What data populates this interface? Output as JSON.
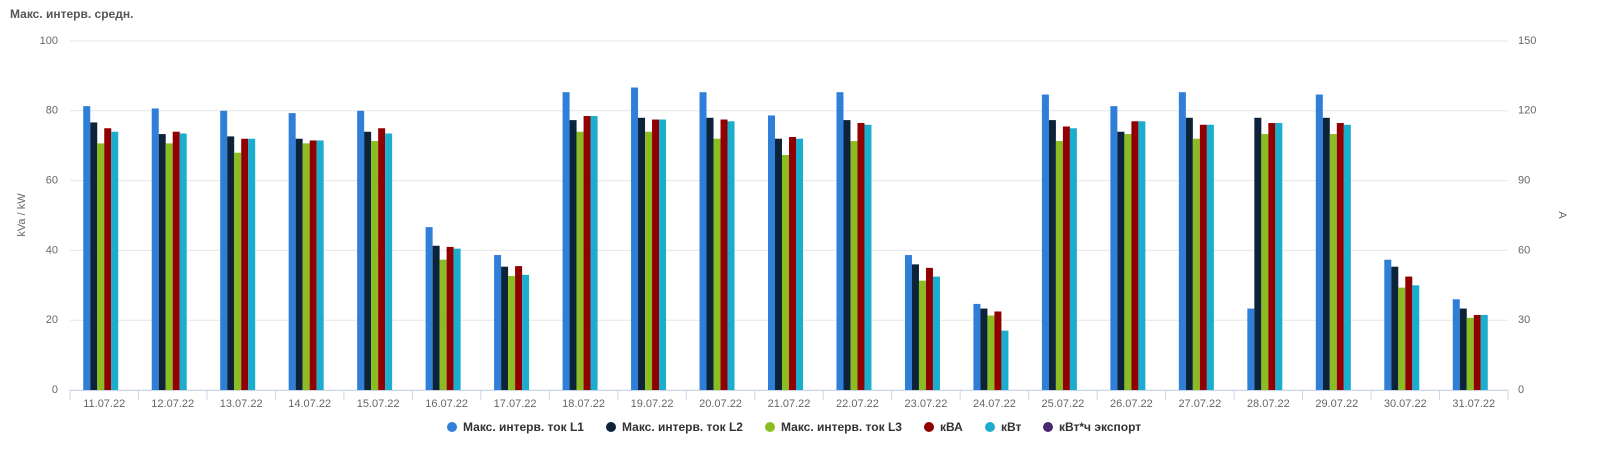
{
  "chart_data": {
    "type": "bar",
    "title": "Макс. интерв. средн.",
    "ylabel": "kVa / kW",
    "y2label": "A",
    "categories": [
      "11.07.22",
      "12.07.22",
      "13.07.22",
      "14.07.22",
      "15.07.22",
      "16.07.22",
      "17.07.22",
      "18.07.22",
      "19.07.22",
      "20.07.22",
      "21.07.22",
      "22.07.22",
      "23.07.22",
      "24.07.22",
      "25.07.22",
      "26.07.22",
      "27.07.22",
      "28.07.22",
      "29.07.22",
      "30.07.22",
      "31.07.22"
    ],
    "series": [
      {
        "name": "Макс. интерв. ток L1",
        "color": "#2f7ed8",
        "axis": "y2",
        "values": [
          122,
          121,
          120,
          119,
          120,
          70,
          58,
          128,
          130,
          128,
          118,
          128,
          58,
          37,
          127,
          122,
          128,
          35,
          127,
          56,
          39
        ]
      },
      {
        "name": "Макс. интерв. ток L2",
        "color": "#0d233a",
        "axis": "y2",
        "values": [
          115,
          110,
          109,
          108,
          111,
          62,
          53,
          116,
          117,
          117,
          108,
          116,
          54,
          35,
          116,
          111,
          117,
          117,
          117,
          53,
          35
        ]
      },
      {
        "name": "Макс. интерв. ток L3",
        "color": "#8bbc21",
        "axis": "y2",
        "values": [
          106,
          106,
          102,
          106,
          107,
          56,
          49,
          111,
          111,
          108,
          101,
          107,
          47,
          32,
          107,
          110,
          108,
          110,
          110,
          44,
          31
        ]
      },
      {
        "name": "кВА",
        "color": "#910000",
        "values": [
          75,
          74,
          72,
          71.5,
          75,
          41,
          35.5,
          78.5,
          77.5,
          77.5,
          72.5,
          76.5,
          35,
          22.5,
          75.5,
          77,
          76,
          76.5,
          76.5,
          32.5,
          21.5
        ]
      },
      {
        "name": "кВт",
        "color": "#1aadce",
        "values": [
          74,
          73.5,
          72,
          71.5,
          73.5,
          40.5,
          33,
          78.5,
          77.5,
          77,
          72,
          76,
          32.5,
          17,
          75,
          77,
          76,
          76.5,
          76,
          30,
          21.5
        ]
      },
      {
        "name": "кВт*ч экспорт",
        "color": "#492970",
        "values": [
          null,
          null,
          null,
          null,
          null,
          null,
          null,
          null,
          null,
          null,
          null,
          null,
          null,
          null,
          null,
          null,
          null,
          null,
          null,
          null,
          null
        ]
      }
    ],
    "ylim": [
      0,
      100
    ],
    "yticks": [
      0,
      20,
      40,
      60,
      80,
      100
    ],
    "y2lim": [
      0,
      150
    ],
    "y2ticks": [
      0,
      30,
      60,
      90,
      120,
      150
    ],
    "grid": true
  }
}
